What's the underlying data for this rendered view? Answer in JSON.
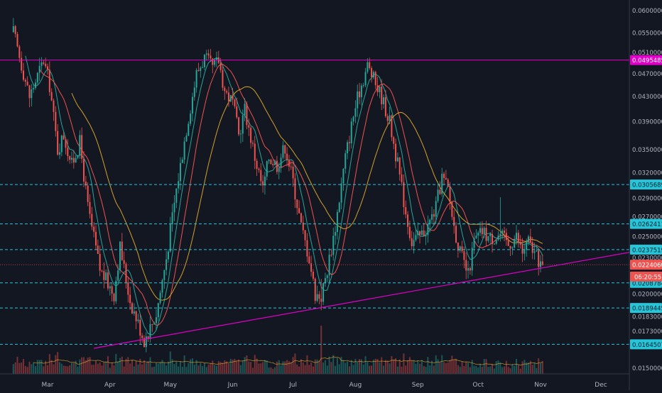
{
  "chart_data": {
    "type": "candlestick",
    "title": "",
    "xlabel": "",
    "ylabel": "",
    "x_ticks": [
      "Mar",
      "Apr",
      "May",
      "Jun",
      "Jul",
      "Aug",
      "Sep",
      "Oct",
      "Nov",
      "Dec"
    ],
    "y_ticks": [
      "0.06000000",
      "0.05500000",
      "0.05100000",
      "0.04700000",
      "0.04300000",
      "0.03900000",
      "0.03500000",
      "0.03200000",
      "0.02900000",
      "0.02700000",
      "0.02500000",
      "0.02300000",
      "0.02000000",
      "0.01830000",
      "0.01730000",
      "0.01610000",
      "0.01500000"
    ],
    "ylim": [
      0.0149,
      0.0608
    ],
    "scale": "log",
    "grid": false,
    "price_levels": [
      {
        "label": "0.04954854",
        "value": 0.04954854,
        "color": "#e100c8",
        "style": "solid"
      },
      {
        "label": "0.03056891",
        "value": 0.03056891,
        "color": "#26c6da",
        "style": "dashed"
      },
      {
        "label": "0.02624119",
        "value": 0.02624119,
        "color": "#26c6da",
        "style": "dashed"
      },
      {
        "label": "0.02375198",
        "value": 0.02375198,
        "color": "#26c6da",
        "style": "dashed"
      },
      {
        "label": "0.02087849",
        "value": 0.02087849,
        "color": "#26c6da",
        "style": "dashed"
      },
      {
        "label": "0.01894456",
        "value": 0.01894456,
        "color": "#26c6da",
        "style": "dashed"
      },
      {
        "label": "0.01645078",
        "value": 0.01645078,
        "color": "#26c6da",
        "style": "dashed"
      }
    ],
    "last_price": {
      "label": "0.02240600",
      "value": 0.022406,
      "color": "#ef5350"
    },
    "countdown": {
      "label": "06:20:55",
      "value": 0.0214
    },
    "trendline": {
      "color": "#e100c8",
      "from": {
        "date": "2019-03-24",
        "value": 0.0162
      },
      "to": {
        "date": "2019-12-27",
        "value": 0.0239
      }
    },
    "moving_averages": [
      {
        "period": 7,
        "color": "#26a69a"
      },
      {
        "period": 14,
        "color": "#ef5350"
      },
      {
        "period": 30,
        "color": "#d4a02a"
      }
    ],
    "colors": {
      "up": "#26a69a",
      "down": "#ef5350",
      "background": "#131722"
    },
    "anchors": [
      [
        "2019-02-12",
        0.0552
      ],
      [
        "2019-02-20",
        0.043
      ],
      [
        "2019-02-27",
        0.0495
      ],
      [
        "2019-03-02",
        0.045
      ],
      [
        "2019-03-06",
        0.035
      ],
      [
        "2019-03-09",
        0.037
      ],
      [
        "2019-03-13",
        0.033
      ],
      [
        "2019-03-17",
        0.036
      ],
      [
        "2019-03-21",
        0.028
      ],
      [
        "2019-03-27",
        0.022
      ],
      [
        "2019-04-03",
        0.02
      ],
      [
        "2019-04-06",
        0.024
      ],
      [
        "2019-04-11",
        0.0195
      ],
      [
        "2019-04-18",
        0.0167
      ],
      [
        "2019-04-24",
        0.0185
      ],
      [
        "2019-04-29",
        0.023
      ],
      [
        "2019-05-04",
        0.03
      ],
      [
        "2019-05-09",
        0.038
      ],
      [
        "2019-05-14",
        0.047
      ],
      [
        "2019-05-18",
        0.05
      ],
      [
        "2019-05-22",
        0.048
      ],
      [
        "2019-05-25",
        0.0495
      ],
      [
        "2019-05-28",
        0.044
      ],
      [
        "2019-06-01",
        0.042
      ],
      [
        "2019-06-04",
        0.037
      ],
      [
        "2019-06-07",
        0.041
      ],
      [
        "2019-06-12",
        0.034
      ],
      [
        "2019-06-16",
        0.03
      ],
      [
        "2019-06-19",
        0.034
      ],
      [
        "2019-06-23",
        0.033
      ],
      [
        "2019-06-27",
        0.0355
      ],
      [
        "2019-07-01",
        0.031
      ],
      [
        "2019-07-05",
        0.026
      ],
      [
        "2019-07-09",
        0.023
      ],
      [
        "2019-07-12",
        0.02
      ],
      [
        "2019-07-15",
        0.0198
      ],
      [
        "2019-07-18",
        0.022
      ],
      [
        "2019-07-22",
        0.026
      ],
      [
        "2019-07-27",
        0.034
      ],
      [
        "2019-07-31",
        0.04
      ],
      [
        "2019-08-03",
        0.044
      ],
      [
        "2019-08-07",
        0.0485
      ],
      [
        "2019-08-10",
        0.046
      ],
      [
        "2019-08-14",
        0.043
      ],
      [
        "2019-08-18",
        0.039
      ],
      [
        "2019-08-22",
        0.033
      ],
      [
        "2019-08-26",
        0.0275
      ],
      [
        "2019-08-29",
        0.0245
      ],
      [
        "2019-09-02",
        0.025
      ],
      [
        "2019-09-06",
        0.026
      ],
      [
        "2019-09-10",
        0.028
      ],
      [
        "2019-09-13",
        0.0315
      ],
      [
        "2019-09-16",
        0.03
      ],
      [
        "2019-09-19",
        0.026
      ],
      [
        "2019-09-22",
        0.0235
      ],
      [
        "2019-09-26",
        0.0215
      ],
      [
        "2019-09-29",
        0.0245
      ],
      [
        "2019-10-03",
        0.0255
      ],
      [
        "2019-10-07",
        0.0248
      ],
      [
        "2019-10-12",
        0.0252
      ],
      [
        "2019-10-16",
        0.0242
      ],
      [
        "2019-10-20",
        0.025
      ],
      [
        "2019-10-23",
        0.0235
      ],
      [
        "2019-10-26",
        0.0245
      ],
      [
        "2019-10-30",
        0.023
      ],
      [
        "2019-11-02",
        0.02241
      ]
    ]
  }
}
